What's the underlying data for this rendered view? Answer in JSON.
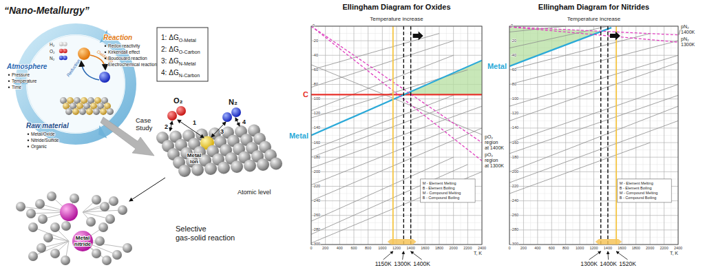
{
  "diagram": {
    "title": "“Nano-Metallurgy”",
    "cycle": {
      "gases": [
        "H₂",
        "O₂",
        "N₂"
      ],
      "inner_labels": [
        "Oxidation",
        "Reduction"
      ],
      "sections": [
        {
          "label": "Atmosphere",
          "items": [
            "Pressure",
            "Temperature",
            "Time"
          ]
        },
        {
          "label": "Reaction",
          "items": [
            "Redox reactivity",
            "Kirkendall effect",
            "Boudouard reaction",
            "Electrochemical reaction"
          ]
        },
        {
          "label": "Raw material",
          "items": [
            "Metal/Oxide",
            "Nitride/Sulfide",
            "Organic"
          ]
        }
      ]
    },
    "energy_terms": [
      {
        "number": "1:",
        "symbol": "ΔG",
        "subscript": "O-Metal"
      },
      {
        "number": "2:",
        "symbol": "ΔG",
        "subscript": "O-Carbon"
      },
      {
        "number": "3:",
        "symbol": "ΔG",
        "subscript": "N-Metal"
      },
      {
        "number": "4:",
        "symbol": "ΔG",
        "subscript": "N-Carbon"
      }
    ],
    "case_study": "Case\nStudy",
    "molecules": [
      "O₂",
      "N₂"
    ],
    "paths": [
      "1",
      "2",
      "3",
      "4"
    ],
    "metal_ion": "Metal\nion",
    "atomic_level": "Atomic level",
    "metal_nitride": "Metal\nnitride",
    "caption": "Selective\ngas-solid reaction"
  },
  "chart_data": [
    {
      "type": "line",
      "title": "Ellingham Diagram for Oxides",
      "subtitle": "Temperature increase",
      "x_label": "T, K",
      "xlim": [
        0,
        2400
      ],
      "ylim": [
        -300,
        0
      ],
      "xticks": [
        0,
        200,
        400,
        600,
        800,
        1000,
        1200,
        1400,
        1600,
        1800,
        2000,
        2200,
        2400
      ],
      "yticks": [
        0,
        -20,
        -40,
        -60,
        -80,
        -100,
        -120,
        -140,
        -160,
        -180,
        -200,
        -220,
        -240,
        -260,
        -280,
        -300
      ],
      "grid": true,
      "series": [
        {
          "type": "area",
          "color": "#b5dfa0",
          "x": [
            1305,
            2400
          ],
          "values": [
            -94,
            -47
          ],
          "low": [
            -94,
            -94
          ]
        },
        {
          "color": "#8a8a8a",
          "x": [
            0,
            1800
          ],
          "values": [
            -60,
            -10
          ]
        },
        {
          "color": "#8a8a8a",
          "x": [
            0,
            2000
          ],
          "values": [
            -84,
            -20
          ]
        },
        {
          "color": "#8a8a8a",
          "x": [
            0,
            2000
          ],
          "values": [
            -116,
            -40
          ]
        },
        {
          "color": "#8a8a8a",
          "x": [
            0,
            2200
          ],
          "values": [
            -126,
            -60
          ]
        },
        {
          "color": "#8a8a8a",
          "x": [
            0,
            2000
          ],
          "values": [
            -170,
            -95
          ]
        },
        {
          "color": "#8a8a8a",
          "x": [
            0,
            2200
          ],
          "values": [
            -180,
            -100
          ]
        },
        {
          "color": "#8a8a8a",
          "x": [
            0,
            2400
          ],
          "values": [
            -195,
            -110
          ]
        },
        {
          "color": "#8a8a8a",
          "x": [
            0,
            2000
          ],
          "values": [
            -218,
            -140
          ]
        },
        {
          "color": "#8a8a8a",
          "x": [
            0,
            2400
          ],
          "values": [
            -240,
            -140
          ]
        },
        {
          "color": "#8a8a8a",
          "x": [
            0,
            2000
          ],
          "values": [
            -268,
            -180
          ]
        },
        {
          "color": "#8a8a8a",
          "x": [
            0,
            2200
          ],
          "values": [
            -286,
            -190
          ]
        },
        {
          "color": "#8a8a8a",
          "x": [
            0,
            2400
          ],
          "values": [
            -298,
            -200
          ]
        },
        {
          "color": "#8a8a8a",
          "x": [
            0,
            2400
          ],
          "values": [
            -53,
            -149
          ]
        },
        {
          "name": "C",
          "color": "#e8302a",
          "line_style": "solid",
          "x": [
            0,
            2400
          ],
          "values": [
            -94,
            -94
          ]
        },
        {
          "name": "Metal",
          "color": "#2aa9d8",
          "line_style": "solid",
          "x": [
            0,
            2400
          ],
          "values": [
            -150,
            -47
          ]
        },
        {
          "name": "pO₂\nregion\nat 1400K",
          "color": "#e040c0",
          "line_style": "dashed",
          "x": [
            0,
            2400
          ],
          "values": [
            0,
            -160
          ]
        },
        {
          "name": "pO₂\nregion\nat 1300K",
          "color": "#e040c0",
          "line_style": "dashed",
          "x": [
            0,
            2400
          ],
          "values": [
            0,
            -185
          ]
        }
      ],
      "vlines": [
        {
          "value": 1150,
          "label": "1150K",
          "color": "#f5c542",
          "line_style": "solid"
        },
        {
          "value": 1300,
          "label": "1300K",
          "color": "#000000",
          "line_style": "dashed"
        },
        {
          "value": 1400,
          "label": "1400K",
          "color": "#000000",
          "line_style": "dashed"
        }
      ],
      "annotations": [
        "M - Element Melting",
        "B - Element Boiling",
        "M - Compound Melting",
        "B - Compound Boiling"
      ]
    },
    {
      "type": "line",
      "title": "Ellingham Diagram for Nitrides",
      "subtitle": "Temperature increase",
      "x_label": "T, K",
      "xlim": [
        0,
        2400
      ],
      "ylim": [
        -300,
        0
      ],
      "xticks": [
        0,
        200,
        400,
        600,
        800,
        1000,
        1200,
        1400,
        1600,
        1800,
        2000,
        2200,
        2400
      ],
      "yticks": [
        0,
        -20,
        -40,
        -60,
        -80,
        -100,
        -120,
        -140,
        -160,
        -180,
        -200,
        -220,
        -240,
        -260,
        -280,
        -300
      ],
      "grid": true,
      "series": [
        {
          "type": "area",
          "color": "#b5dfa0",
          "x": [
            0,
            1313
          ],
          "values": [
            -1,
            -7
          ],
          "low": [
            -55,
            -7
          ]
        },
        {
          "color": "#8a8a8a",
          "x": [
            0,
            800
          ],
          "values": [
            -8,
            0
          ]
        },
        {
          "color": "#8a8a8a",
          "x": [
            0,
            1400
          ],
          "values": [
            -30,
            0
          ]
        },
        {
          "color": "#8a8a8a",
          "x": [
            0,
            2000
          ],
          "values": [
            -60,
            -10
          ]
        },
        {
          "color": "#8a8a8a",
          "x": [
            0,
            2400
          ],
          "values": [
            -80,
            -20
          ]
        },
        {
          "color": "#8a8a8a",
          "x": [
            0,
            2400
          ],
          "values": [
            -110,
            -40
          ]
        },
        {
          "color": "#8a8a8a",
          "x": [
            0,
            2400
          ],
          "values": [
            -130,
            -50
          ]
        },
        {
          "color": "#8a8a8a",
          "x": [
            0,
            2400
          ],
          "values": [
            -160,
            -80
          ]
        },
        {
          "color": "#8a8a8a",
          "x": [
            0,
            2400
          ],
          "values": [
            -175,
            -95
          ]
        },
        {
          "color": "#8a8a8a",
          "x": [
            0,
            2400
          ],
          "values": [
            -200,
            -110
          ]
        },
        {
          "color": "#8a8a8a",
          "x": [
            0,
            2400
          ],
          "values": [
            -215,
            -130
          ]
        },
        {
          "color": "#8a8a8a",
          "x": [
            0,
            2000
          ],
          "values": [
            -230,
            -160
          ]
        },
        {
          "name": "Metal",
          "color": "#2aa9d8",
          "line_style": "solid",
          "x": [
            0,
            1450
          ],
          "values": [
            -55,
            -2
          ]
        },
        {
          "name": "pN₂\n1400K",
          "color": "#e040c0",
          "line_style": "dashed",
          "x": [
            0,
            2400
          ],
          "values": [
            -1,
            -12
          ]
        },
        {
          "name": "pN₂\n1300K",
          "color": "#e040c0",
          "line_style": "dashed",
          "x": [
            0,
            2400
          ],
          "values": [
            -1,
            -22
          ]
        }
      ],
      "vlines": [
        {
          "value": 1300,
          "label": "1300K",
          "color": "#000000",
          "line_style": "dashed"
        },
        {
          "value": 1400,
          "label": "1400K",
          "color": "#000000",
          "line_style": "dashed"
        },
        {
          "value": 1520,
          "label": "1520K",
          "color": "#f5c542",
          "line_style": "solid"
        }
      ],
      "annotations": [
        "M - Element Melting",
        "B - Element Boiling",
        "M - Compound Melting",
        "B - Compound Boiling"
      ]
    }
  ]
}
